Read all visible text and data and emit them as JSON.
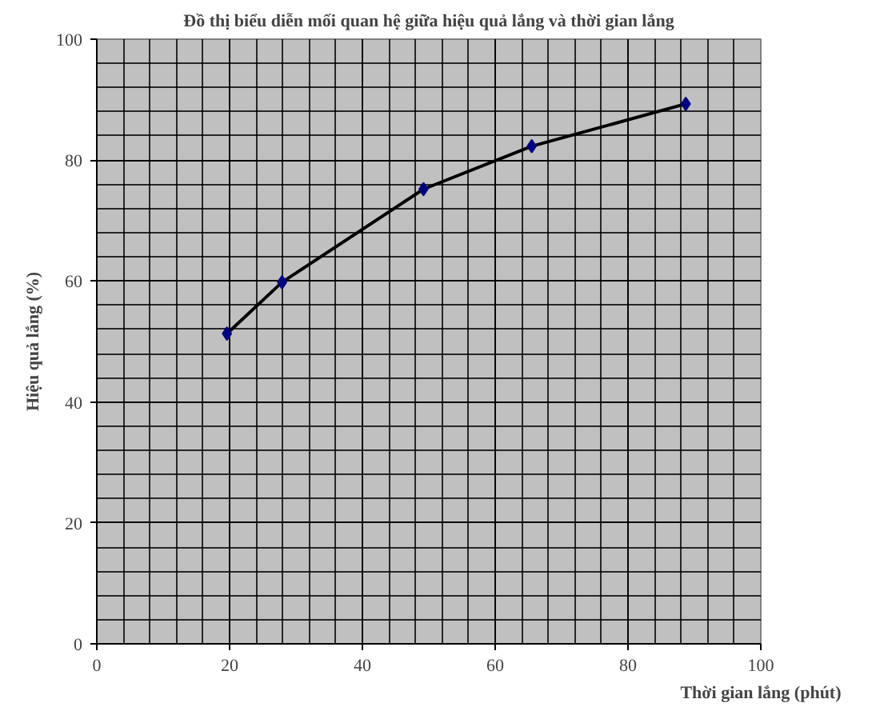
{
  "chart_data": {
    "type": "scatter",
    "title": "Đồ thị biểu diễn mối quan hệ giữa hiệu quả lắng và thời gian lắng",
    "xlabel": "Thời gian lắng (phút)",
    "ylabel": "Hiệu quả lắng (%)",
    "xlim": [
      0,
      100
    ],
    "ylim": [
      0,
      100
    ],
    "xticks": [
      0,
      20,
      40,
      60,
      80,
      100
    ],
    "yticks": [
      0,
      20,
      40,
      60,
      80,
      100
    ],
    "grid": true,
    "marker": "diamond",
    "series": [
      {
        "type": "line",
        "marker": "none",
        "color": "#000000",
        "x": [
          19.6,
          27.9,
          49.2,
          65.5,
          88.7
        ],
        "values": [
          51.3,
          59.8,
          75.2,
          82.3,
          89.3
        ]
      },
      {
        "color": "#000080",
        "x": [
          19.6,
          27.9,
          49.2,
          65.5,
          88.7
        ],
        "values": [
          51.3,
          59.8,
          75.2,
          82.3,
          89.3
        ]
      }
    ]
  }
}
